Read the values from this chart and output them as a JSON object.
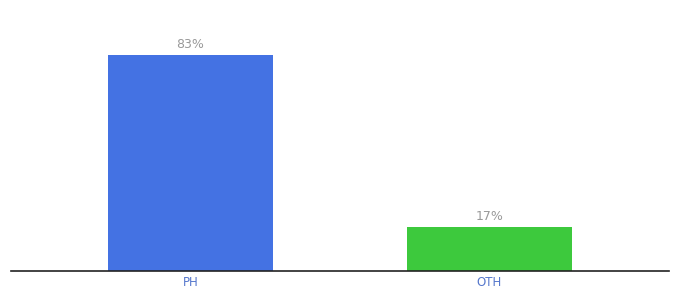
{
  "categories": [
    "PH",
    "OTH"
  ],
  "values": [
    83,
    17
  ],
  "bar_colors": [
    "#4472e3",
    "#3dc93d"
  ],
  "labels": [
    "83%",
    "17%"
  ],
  "background_color": "#ffffff",
  "bar_width": 0.55,
  "ylim": [
    0,
    100
  ],
  "label_fontsize": 9,
  "tick_fontsize": 8.5,
  "tick_color": "#5577cc",
  "label_color": "#999999",
  "spine_color": "#222222"
}
